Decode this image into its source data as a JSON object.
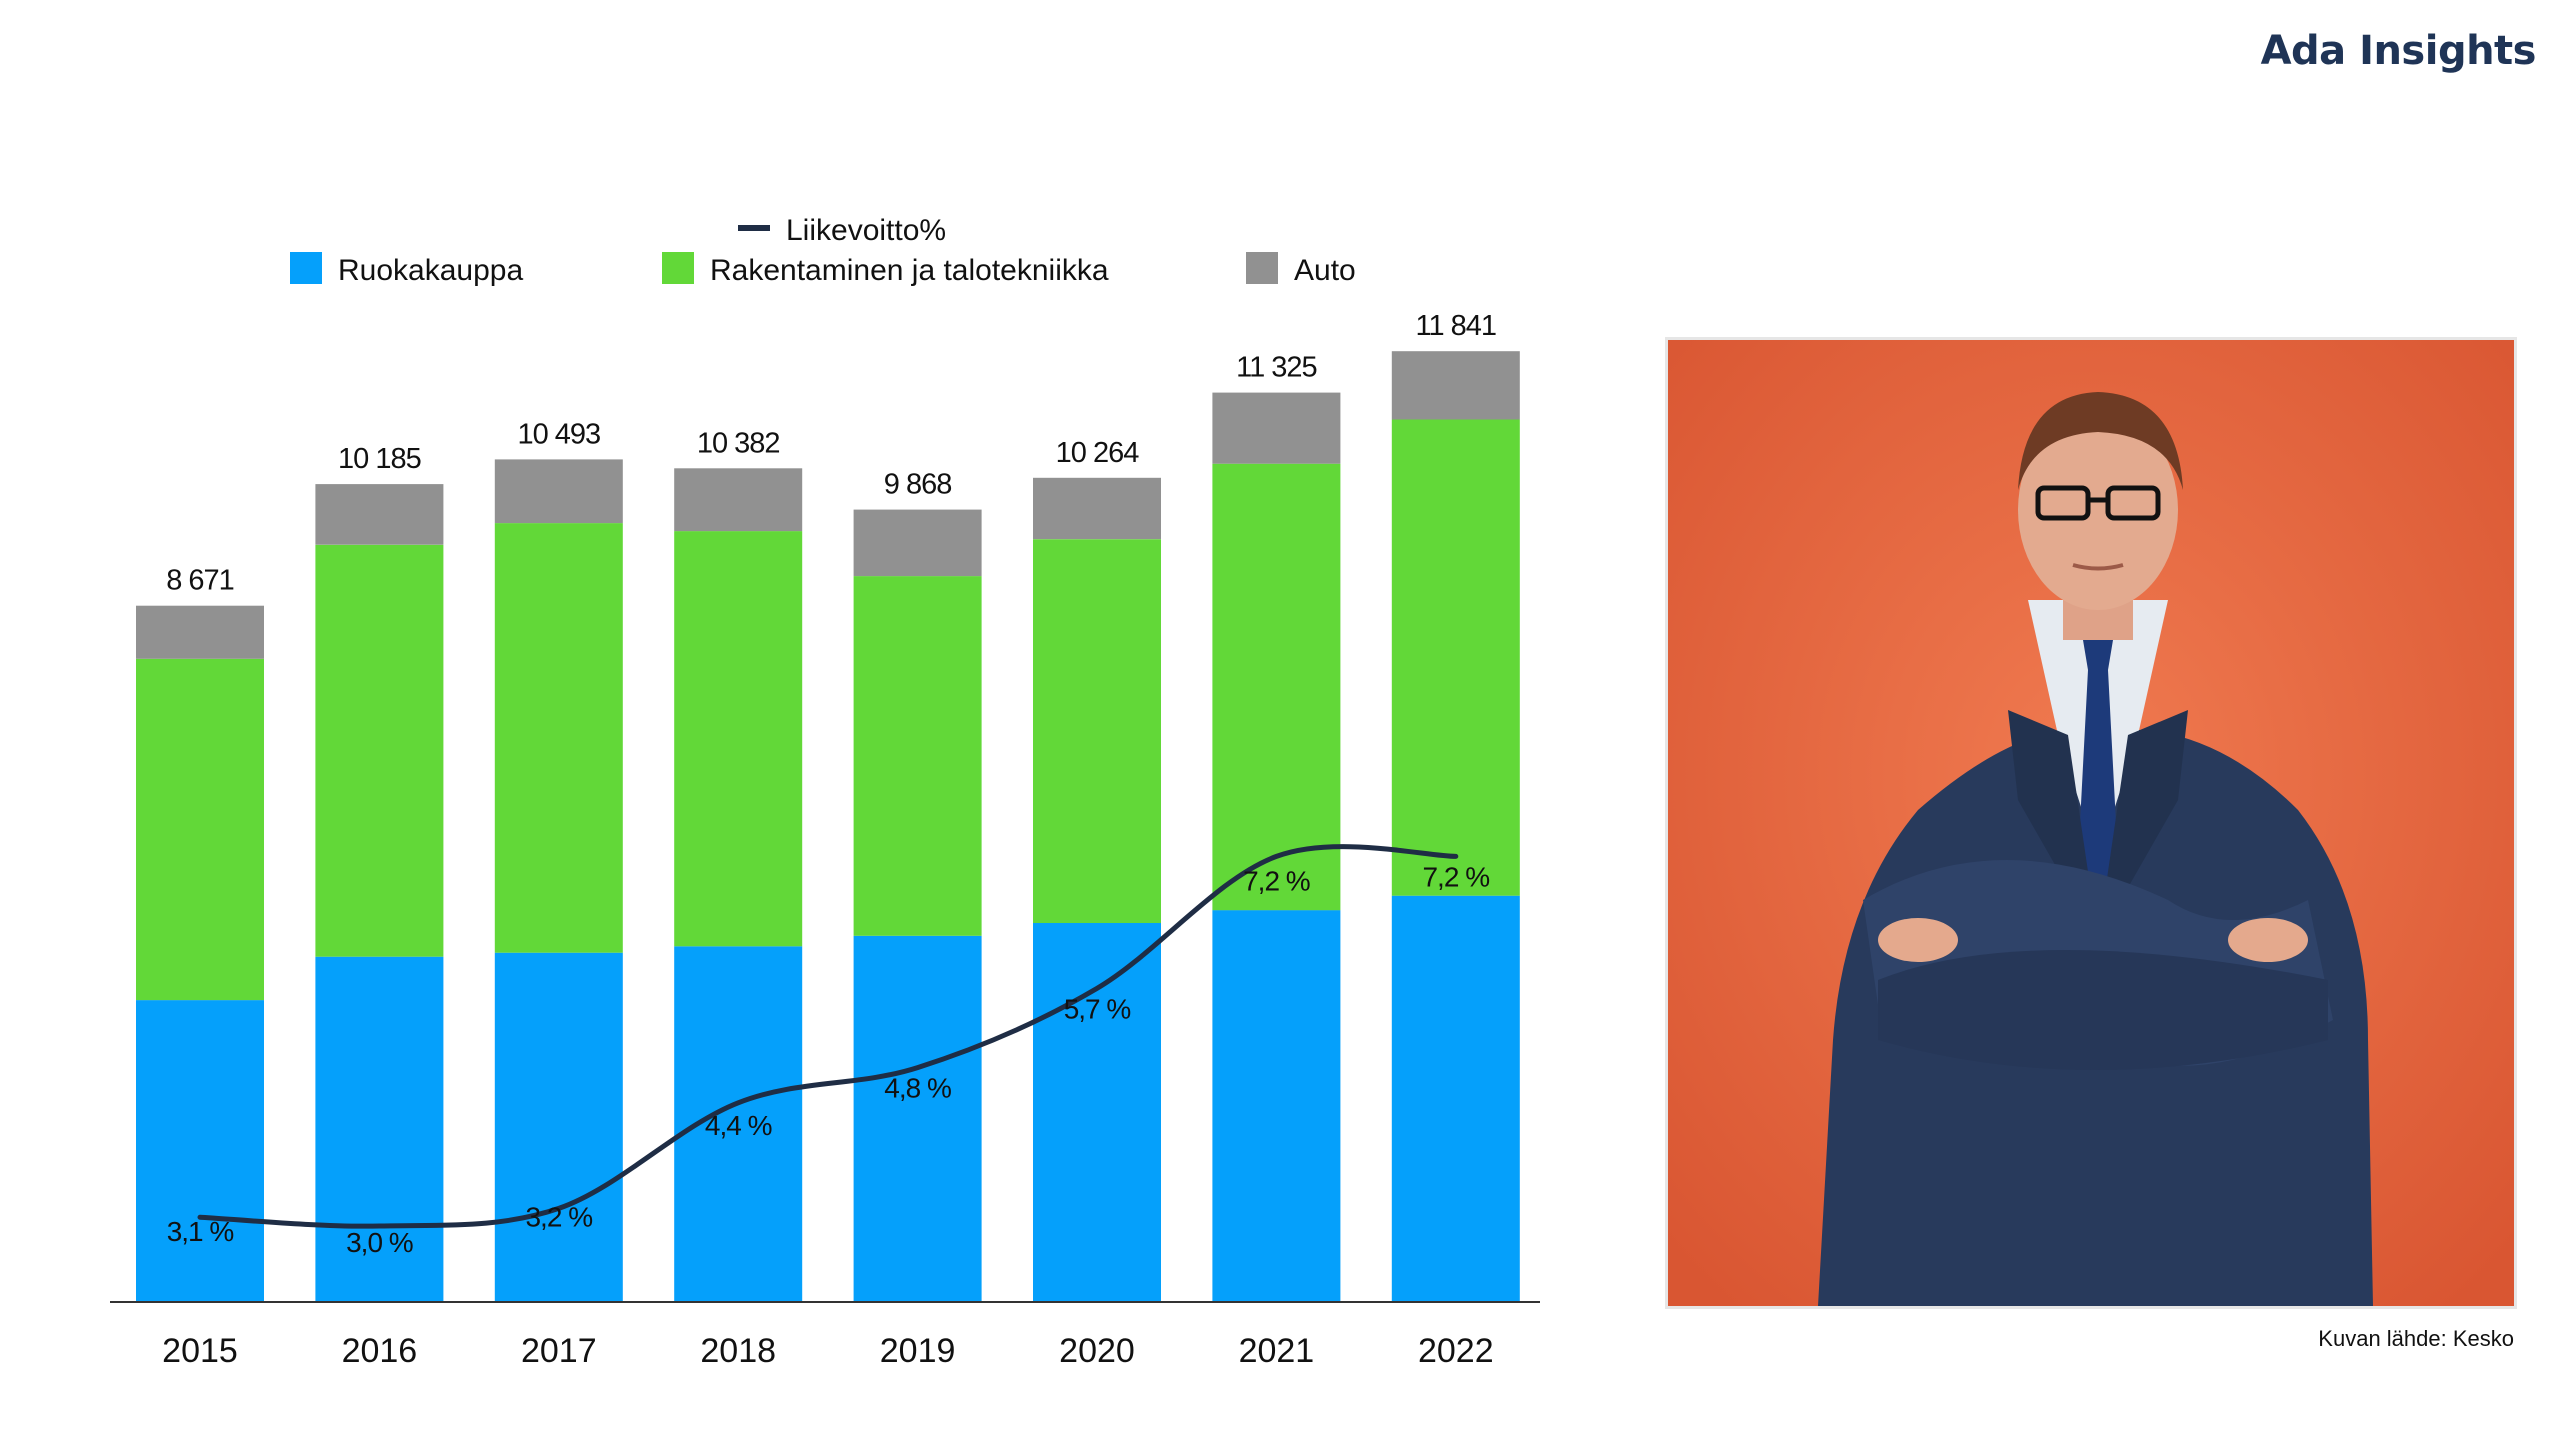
{
  "header": {
    "brand": "Ada Insights"
  },
  "photo": {
    "credit": "Kuvan lähde: Kesko"
  },
  "colors": {
    "ruokakauppa": "#05a0fb",
    "rakentaminen": "#62d838",
    "auto": "#919191",
    "line": "#1f2d45",
    "photo_bg": "#e8643e"
  },
  "chart_data": {
    "type": "bar",
    "stacked": true,
    "categories": [
      "2015",
      "2016",
      "2017",
      "2018",
      "2019",
      "2020",
      "2021",
      "2022"
    ],
    "series": [
      {
        "name": "Ruokakauppa",
        "color": "#05a0fb",
        "values": [
          3760,
          4300,
          4350,
          4430,
          4560,
          4720,
          4880,
          5060
        ]
      },
      {
        "name": "Rakentaminen ja talotekniikka",
        "color": "#62d838",
        "values": [
          4250,
          5130,
          5350,
          5170,
          4480,
          4780,
          5560,
          5930
        ]
      },
      {
        "name": "Auto",
        "color": "#919191",
        "values": [
          661,
          755,
          793,
          782,
          828,
          764,
          885,
          851
        ]
      }
    ],
    "totals": [
      8671,
      10185,
      10493,
      10382,
      9868,
      10264,
      11325,
      11841
    ],
    "total_labels": [
      "8 671",
      "10 185",
      "10 493",
      "10 382",
      "9 868",
      "10 264",
      "11 325",
      "11 841"
    ],
    "line_series": {
      "name": "Liikevoitto%",
      "color": "#1f2d45",
      "values": [
        3.1,
        3.0,
        3.2,
        4.4,
        4.8,
        5.7,
        7.2,
        7.2
      ],
      "labels": [
        "3,1 %",
        "3,0 %",
        "3,2 %",
        "4,4 %",
        "4,8 %",
        "5,7 %",
        "7,2 %",
        "7,2 %"
      ]
    },
    "ylim": [
      0,
      12000
    ],
    "legend_position": "top",
    "grid": false
  }
}
